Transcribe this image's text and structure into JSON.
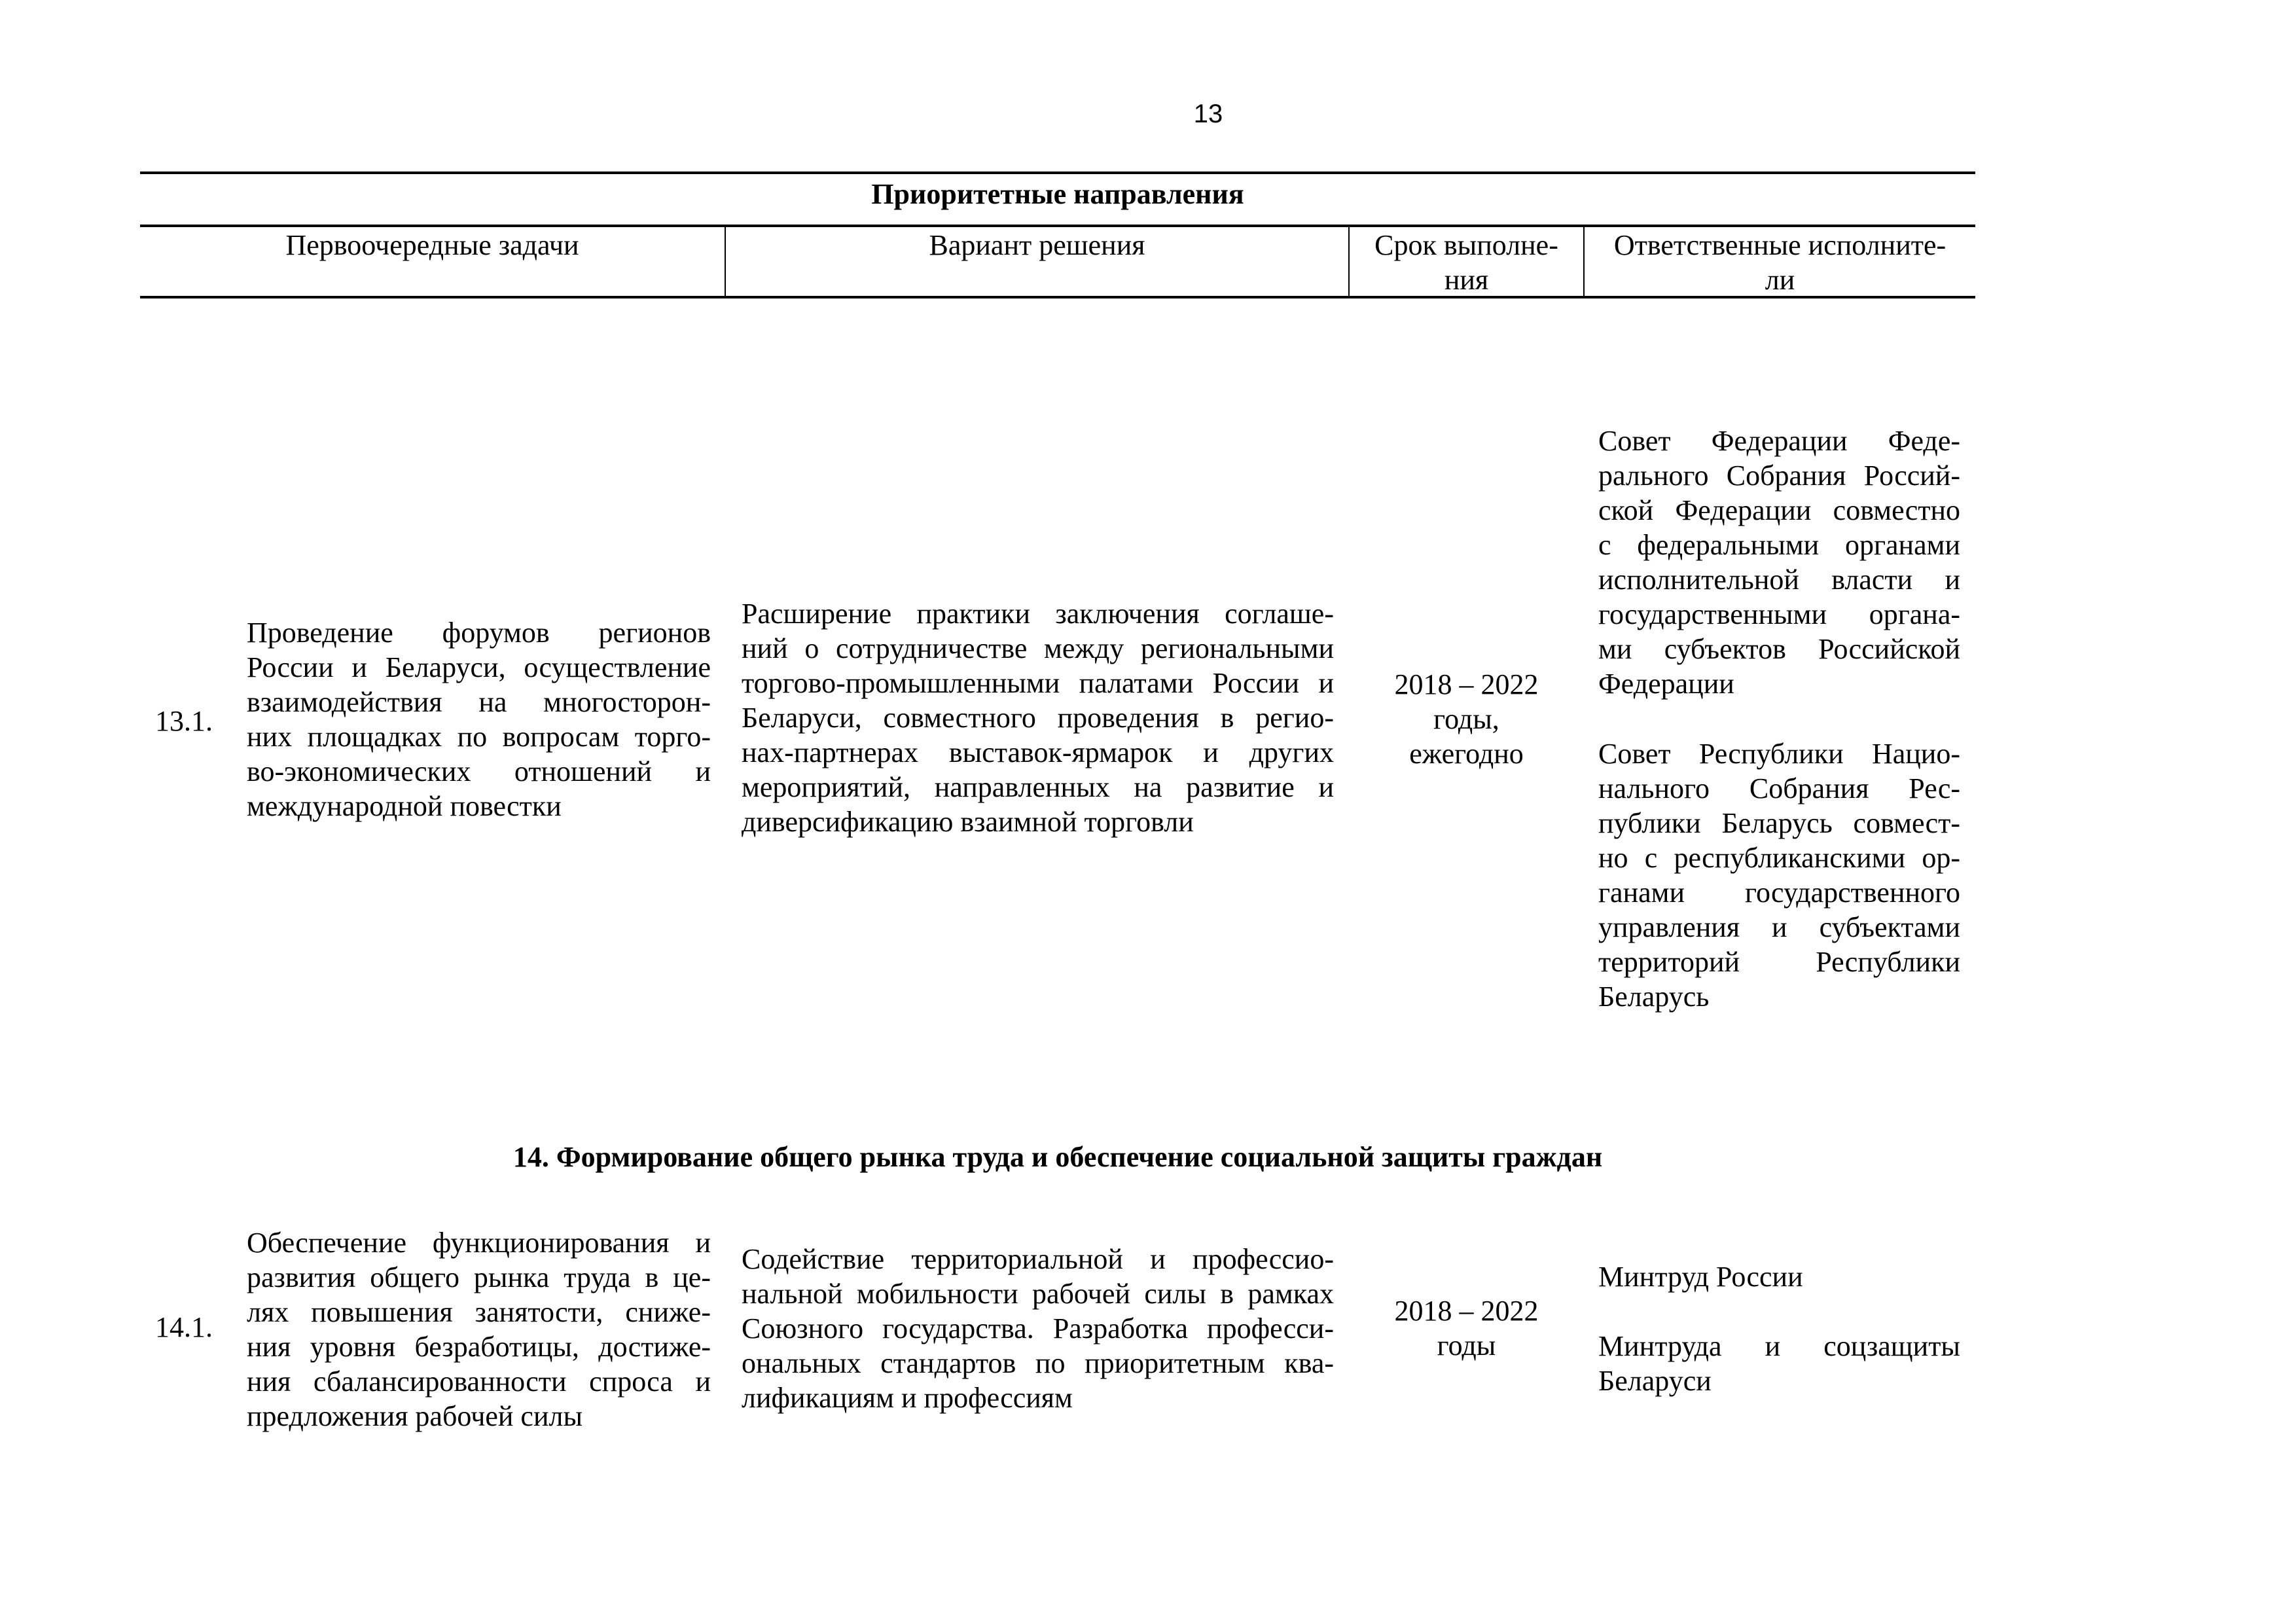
{
  "page_number": "13",
  "table_title": "Приоритетные направления",
  "headers": [
    [
      "Первоочередные задачи"
    ],
    [
      "Вариант решения"
    ],
    [
      "Срок выполне-",
      "ния"
    ],
    [
      "Ответственные исполните-",
      "ли"
    ]
  ],
  "rows": [
    {
      "number": "13.1.",
      "task": [
        "Проведение форумов регионов",
        "России и Беларуси, осуществление",
        "взаимодействия на многосторон-",
        "них площадках по вопросам торго-",
        "во-экономических отношений и",
        "международной повестки"
      ],
      "solution": [
        "Расширение практики заключения соглаше-",
        "ний о сотрудничестве между региональными",
        "торгово-промышленными палатами России и",
        "Беларуси, совместного проведения в регио-",
        "нах-партнерах выставок-ярмарок и других",
        "мероприятий, направленных на развитие и",
        "диверсификацию взаимной торговли"
      ],
      "term": [
        "2018 – 2022",
        "годы,",
        "ежегодно"
      ],
      "responsible": [
        [
          "Совет Федерации Феде-",
          "рального Собрания Россий-",
          "ской Федерации совместно",
          "с федеральными органами",
          "исполнительной власти и",
          "государственными органа-",
          "ми субъектов Российской",
          "Федерации"
        ],
        [
          "Совет Республики Нацио-",
          "нального Собрания Рес-",
          "публики Беларусь совмест-",
          "но с республиканскими ор-",
          "ганами государственного",
          "управления и субъектами",
          "территорий Республики",
          "Беларусь"
        ]
      ]
    },
    {
      "number": "14.1.",
      "task": [
        "Обеспечение функционирования и",
        "развития общего рынка труда в це-",
        "лях повышения занятости, сниже-",
        "ния уровня безработицы, достиже-",
        "ния сбалансированности спроса и",
        "предложения рабочей силы"
      ],
      "solution": [
        "Содействие территориальной и профессио-",
        "нальной мобильности рабочей силы в рамках",
        "Союзного государства. Разработка професси-",
        "ональных стандартов по приоритетным ква-",
        "лификациям и профессиям"
      ],
      "term": [
        "2018 – 2022",
        "годы"
      ],
      "responsible": [
        [
          "Минтруд России"
        ],
        [
          "Минтруда и соцзащиты",
          "Беларуси"
        ]
      ]
    }
  ],
  "section_heading": "14. Формирование общего рынка труда и обеспечение социальной защиты граждан"
}
